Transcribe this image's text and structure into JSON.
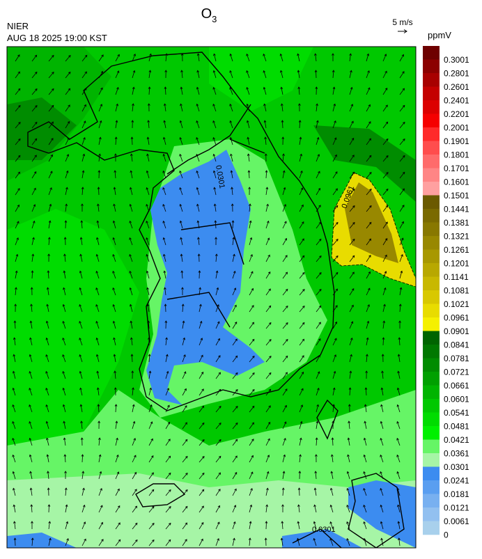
{
  "header": {
    "title": "O",
    "title_sub": "3",
    "source": "NIER",
    "datetime": "AUG 18 2025 19:00 KST",
    "wind_scale": "5 m/s",
    "unit": "ppmV"
  },
  "colorbar": {
    "levels": [
      0.3001,
      0.2801,
      0.2601,
      0.2401,
      0.2201,
      0.2001,
      0.1901,
      0.1801,
      0.1701,
      0.1601,
      0.1501,
      0.1441,
      0.1381,
      0.1321,
      0.1261,
      0.1201,
      0.1141,
      0.1081,
      0.1021,
      0.0961,
      0.0901,
      0.0841,
      0.0781,
      0.0721,
      0.0661,
      0.0601,
      0.0541,
      0.0481,
      0.0421,
      0.0361,
      0.0301,
      0.0241,
      0.0181,
      0.0121,
      0.0061,
      0
    ],
    "colors": [
      "#6e0000",
      "#8c0000",
      "#a80000",
      "#c40000",
      "#dc0000",
      "#f50000",
      "#ff2a2a",
      "#ff4d4d",
      "#ff6b6b",
      "#ff8585",
      "#ffa0a0",
      "#6b5a00",
      "#7a6a00",
      "#887800",
      "#988800",
      "#a89800",
      "#b8a800",
      "#c8b800",
      "#d8c800",
      "#e8dc00",
      "#f5f000",
      "#006400",
      "#007800",
      "#008c00",
      "#00a000",
      "#00b400",
      "#00c800",
      "#00dc00",
      "#00f000",
      "#66f566",
      "#a6f5a6",
      "#3c8cf0",
      "#5a9ef0",
      "#78b0f0",
      "#92c0f0",
      "#a8d0ec"
    ]
  },
  "contour_labels": [
    0.0961,
    0.0301,
    0.0301
  ]
}
